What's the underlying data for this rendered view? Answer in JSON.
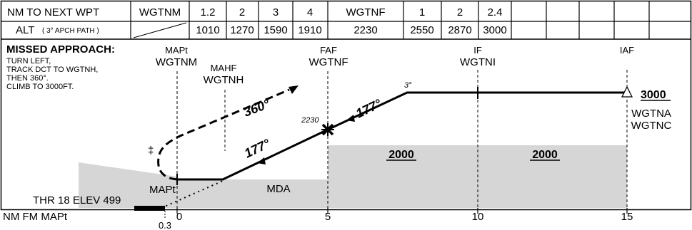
{
  "header": {
    "row1_label": "NM TO NEXT WPT",
    "row1_cells": [
      "WGTNM",
      "1.2",
      "2",
      "3",
      "4",
      "WGTNF",
      "1",
      "2",
      "2.4",
      "",
      "",
      "",
      ""
    ],
    "row2_label": "ALT",
    "row2_sublabel": "( 3° APCH PATH )",
    "row2_cells": [
      "",
      "1010",
      "1270",
      "1590",
      "1910",
      "2230",
      "2550",
      "2870",
      "3000",
      "",
      "",
      "",
      ""
    ]
  },
  "missed_approach": {
    "title": "MISSED APPROACH:",
    "lines": [
      "TURN LEFT,",
      "TRACK DCT TO WGTNH,",
      "THEN 360°.",
      "CLIMB TO 3000FT."
    ]
  },
  "fixes": {
    "mapt": {
      "role": "MAPt",
      "name": "WGTNM"
    },
    "mahf": {
      "role": "MAHF",
      "name": "WGTNH"
    },
    "faf": {
      "role": "FAF",
      "name": "WGTNF"
    },
    "if": {
      "role": "IF",
      "name": "WGTNI"
    },
    "iaf": {
      "role": "IAF",
      "name_lines": [
        "WGTNA",
        "WGTNC"
      ],
      "altitude": "3000"
    }
  },
  "profile": {
    "missed_course": "360°",
    "final_course_a": "177°",
    "final_course_b": "177°",
    "faf_altitude": "2230",
    "glide_angle": "3°",
    "mda_label": "MDA",
    "mapt_label": "MAPt",
    "msa_segment_1": "2000",
    "msa_segment_2": "2000",
    "threshold": "THR 18 ELEV 499",
    "dagger": "‡"
  },
  "distance_axis": {
    "label": "NM FM MAPt",
    "ticks": [
      "0",
      "5",
      "10",
      "15"
    ],
    "offset_label": "0.3"
  }
}
